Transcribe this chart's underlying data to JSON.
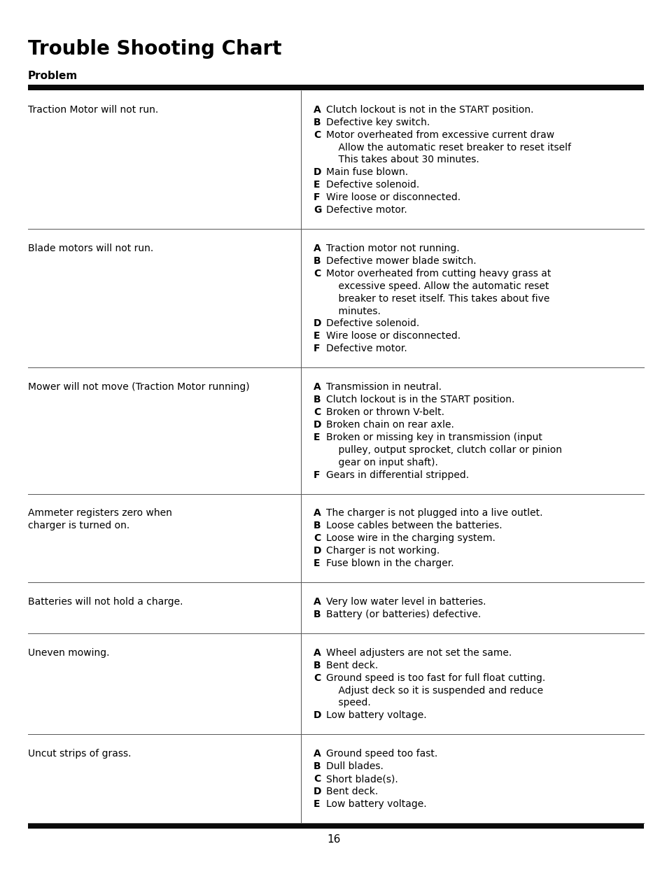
{
  "title": "Trouble Shooting Chart",
  "header_label": "Problem",
  "page_number": "16",
  "bg": "#ffffff",
  "fg": "#000000",
  "rows": [
    {
      "problem": "Traction Motor will not run.",
      "causes": [
        [
          "A",
          "Clutch lockout is not in the START position."
        ],
        [
          "B",
          "Defective key switch."
        ],
        [
          "C",
          "Motor overheated from excessive current draw\n    Allow the automatic reset breaker to reset itself\n    This takes about 30 minutes."
        ],
        [
          "D",
          "Main fuse blown."
        ],
        [
          "E",
          "Defective solenoid."
        ],
        [
          "F",
          "Wire loose or disconnected."
        ],
        [
          "G",
          "Defective motor."
        ]
      ]
    },
    {
      "problem": "Blade motors will not run.",
      "causes": [
        [
          "A",
          "Traction motor not running."
        ],
        [
          "B",
          "Defective mower blade switch."
        ],
        [
          "C",
          "Motor overheated from cutting heavy grass at\n    excessive speed. Allow the automatic reset\n    breaker to reset itself. This takes about five\n    minutes."
        ],
        [
          "D",
          "Defective solenoid."
        ],
        [
          "E",
          "Wire loose or disconnected."
        ],
        [
          "F",
          "Defective motor."
        ]
      ]
    },
    {
      "problem": "Mower will not move (Traction Motor running)",
      "causes": [
        [
          "A",
          "Transmission in neutral."
        ],
        [
          "B",
          "Clutch lockout is in the START position."
        ],
        [
          "C",
          "Broken or thrown V-belt."
        ],
        [
          "D",
          "Broken chain on rear axle."
        ],
        [
          "E",
          "Broken or missing key in transmission (input\n    pulley, output sprocket, clutch collar or pinion\n    gear on input shaft)."
        ],
        [
          "F",
          "Gears in differential stripped."
        ]
      ]
    },
    {
      "problem": "Ammeter registers zero when\ncharger is turned on.",
      "causes": [
        [
          "A",
          "The charger is not plugged into a live outlet."
        ],
        [
          "B",
          "Loose cables between the batteries."
        ],
        [
          "C",
          "Loose wire in the charging system."
        ],
        [
          "D",
          "Charger is not working."
        ],
        [
          "E",
          "Fuse blown in the charger."
        ]
      ]
    },
    {
      "problem": "Batteries will not hold a charge.",
      "causes": [
        [
          "A",
          "Very low water level in batteries."
        ],
        [
          "B",
          "Battery (or batteries) defective."
        ]
      ]
    },
    {
      "problem": "Uneven mowing.",
      "causes": [
        [
          "A",
          "Wheel adjusters are not set the same."
        ],
        [
          "B",
          "Bent deck."
        ],
        [
          "C",
          "Ground speed is too fast for full float cutting.\n    Adjust deck so it is suspended and reduce\n    speed."
        ],
        [
          "D",
          "Low battery voltage."
        ]
      ]
    },
    {
      "problem": "Uncut strips of grass.",
      "causes": [
        [
          "A",
          "Ground speed too fast."
        ],
        [
          "B",
          "Dull blades."
        ],
        [
          "C",
          "Short blade(s)."
        ],
        [
          "D",
          "Bent deck."
        ],
        [
          "E",
          "Low battery voltage."
        ]
      ]
    }
  ]
}
